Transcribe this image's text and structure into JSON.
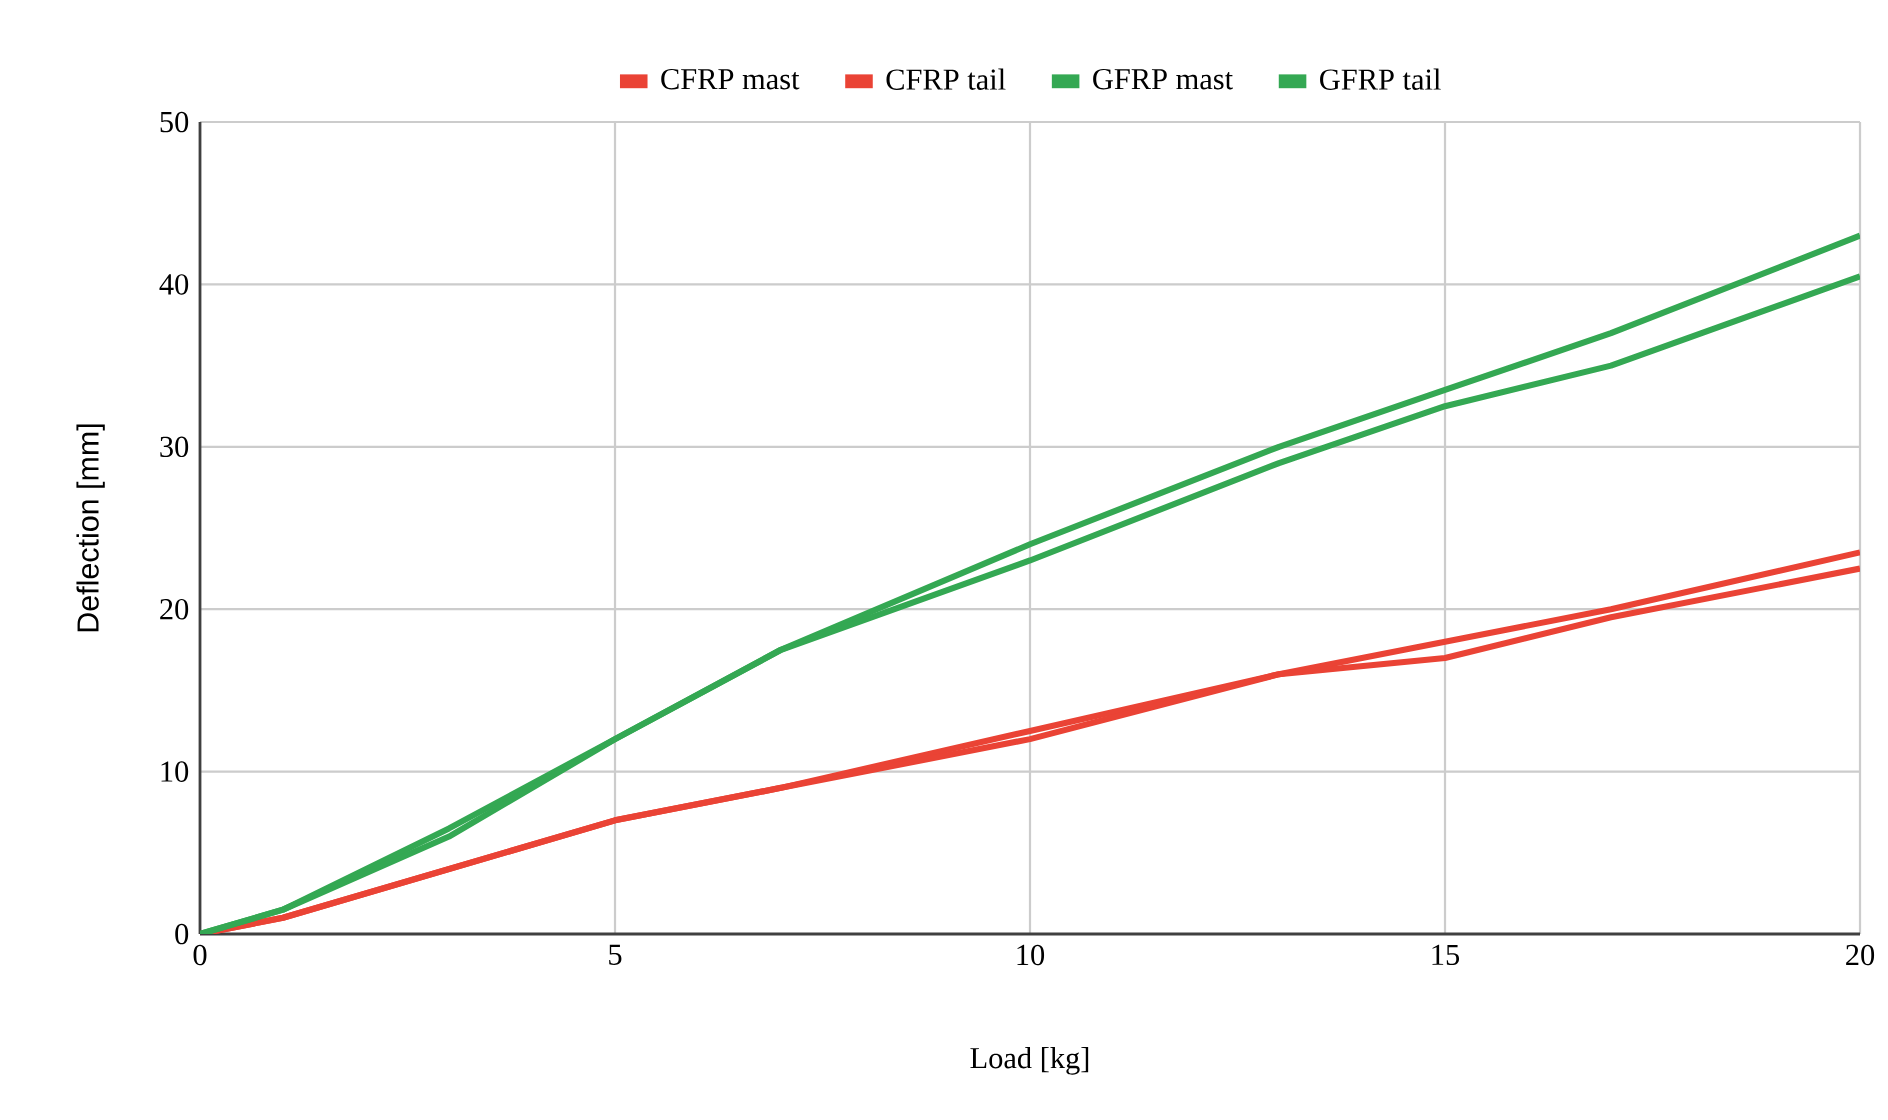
{
  "chart_data": {
    "type": "line",
    "xlabel": "Load [kg]",
    "ylabel": "Deflection [mm]",
    "x": [
      0,
      1,
      3,
      5,
      7,
      10,
      13,
      15,
      17,
      20
    ],
    "series": [
      {
        "name": "CFRP mast",
        "color": "#ea4335",
        "values": [
          0,
          1,
          4,
          7,
          9,
          12.5,
          16,
          18,
          20,
          23.5
        ]
      },
      {
        "name": "CFRP tail",
        "color": "#ea4335",
        "values": [
          0,
          1,
          4,
          7,
          9,
          12,
          16,
          17,
          19.5,
          22.5
        ]
      },
      {
        "name": "GFRP mast",
        "color": "#34a853",
        "values": [
          0,
          1.5,
          6.5,
          12,
          17.5,
          24,
          30,
          33.5,
          37,
          43
        ]
      },
      {
        "name": "GFRP tail",
        "color": "#34a853",
        "values": [
          0,
          1.5,
          6,
          12,
          17.5,
          23,
          29,
          32.5,
          35,
          40.5
        ]
      }
    ],
    "xlim": [
      0,
      20
    ],
    "xticks": [
      0,
      5,
      10,
      15,
      20
    ],
    "ylim": [
      0,
      50
    ],
    "yticks": [
      0,
      10,
      20,
      30,
      40,
      50
    ],
    "grid": true,
    "legend": "top",
    "marker": "none",
    "line_style": "solid"
  }
}
